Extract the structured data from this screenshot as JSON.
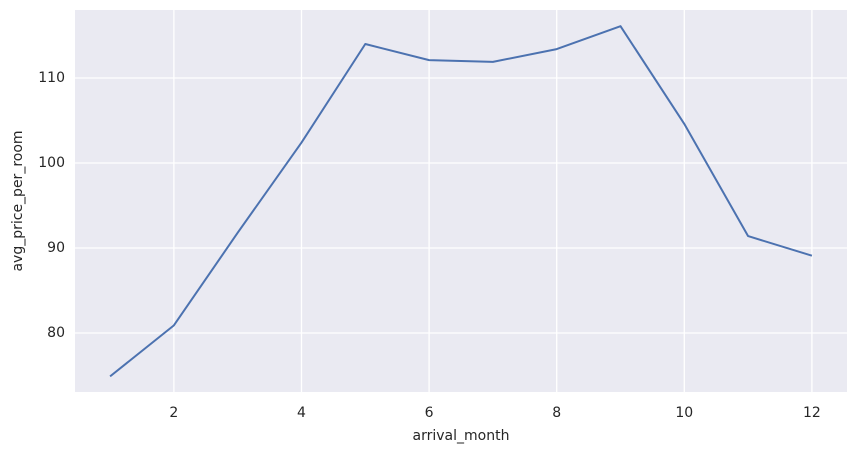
{
  "chart_data": {
    "type": "line",
    "x": [
      1,
      2,
      3,
      4,
      5,
      6,
      7,
      8,
      9,
      10,
      11,
      12
    ],
    "series": [
      {
        "name": "avg_price_per_room",
        "color": "#4c72b0",
        "values": [
          74.9,
          80.9,
          91.8,
          102.4,
          114.0,
          112.1,
          111.9,
          113.4,
          116.1,
          104.6,
          91.4,
          89.1
        ]
      }
    ],
    "xlabel": "arrival_month",
    "ylabel": "avg_price_per_room",
    "xlim": [
      0.45,
      12.55
    ],
    "ylim": [
      73.06,
      118.0
    ],
    "xticks": [
      2,
      4,
      6,
      8,
      10,
      12
    ],
    "yticks": [
      80,
      90,
      100,
      110
    ],
    "grid": true,
    "background": "#eaeaf2"
  }
}
